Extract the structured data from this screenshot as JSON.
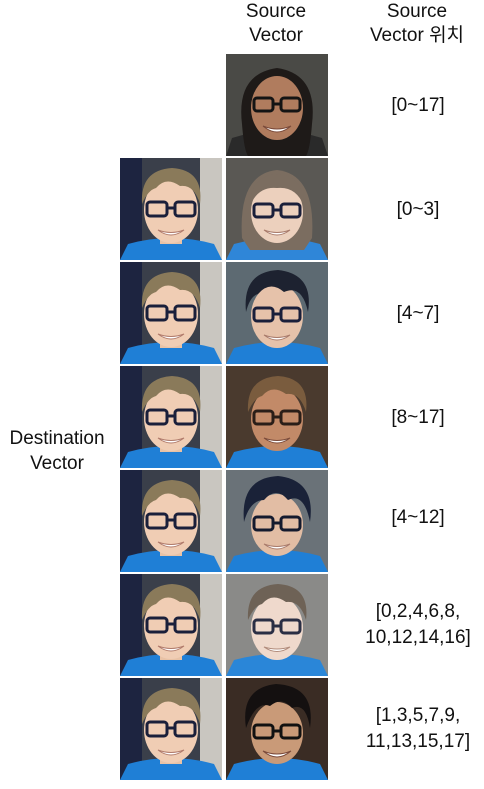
{
  "headers": {
    "source_vector": "Source\nVector",
    "source_vector_position": "Source\nVector 위치"
  },
  "destination_label": "Destination\nVector",
  "source_image": {
    "description_icon": "source-face-woman-glasses",
    "position_label": "[0~17]"
  },
  "rows": [
    {
      "position_label": "[0~3]",
      "result_icon": "result-face-long-hair"
    },
    {
      "position_label": "[4~7]",
      "result_icon": "result-face-dark-hair"
    },
    {
      "position_label": "[8~17]",
      "result_icon": "result-face-tan-skin"
    },
    {
      "position_label": "[4~12]",
      "result_icon": "result-face-dark-hair-2"
    },
    {
      "position_label": "[0,2,4,6,8,\n10,12,14,16]",
      "result_icon": "result-face-pale"
    },
    {
      "position_label": "[1,3,5,7,9,\n11,13,15,17]",
      "result_icon": "result-face-curly-dark"
    }
  ],
  "colors": {
    "shirt_blue": "#1f7fd6",
    "glasses_dark": "#1a1f3a",
    "light_hair": "#8a7a5a"
  }
}
